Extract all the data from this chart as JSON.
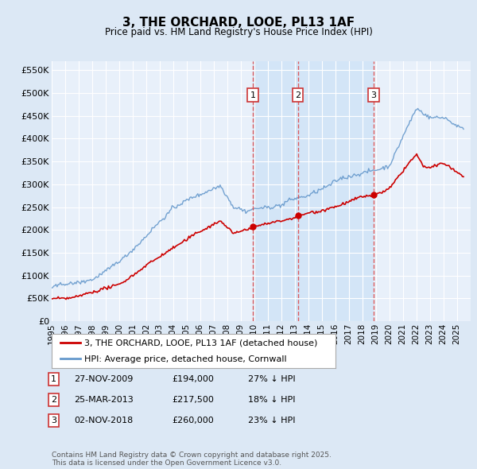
{
  "title": "3, THE ORCHARD, LOOE, PL13 1AF",
  "subtitle": "Price paid vs. HM Land Registry's House Price Index (HPI)",
  "ylabel_ticks": [
    "£0",
    "£50K",
    "£100K",
    "£150K",
    "£200K",
    "£250K",
    "£300K",
    "£350K",
    "£400K",
    "£450K",
    "£500K",
    "£550K"
  ],
  "ytick_values": [
    0,
    50000,
    100000,
    150000,
    200000,
    250000,
    300000,
    350000,
    400000,
    450000,
    500000,
    550000
  ],
  "ylim": [
    0,
    570000
  ],
  "background_color": "#dce8f5",
  "plot_bg": "#dce8f5",
  "chart_bg": "#e8f0fa",
  "legend_entries": [
    "3, THE ORCHARD, LOOE, PL13 1AF (detached house)",
    "HPI: Average price, detached house, Cornwall"
  ],
  "transactions": [
    {
      "num": 1,
      "date": "27-NOV-2009",
      "price": 194000,
      "price_str": "£194,000",
      "pct": "27%",
      "dir": "↓",
      "year": 2009.9
    },
    {
      "num": 2,
      "date": "25-MAR-2013",
      "price": 217500,
      "price_str": "£217,500",
      "pct": "18%",
      "dir": "↓",
      "year": 2013.23
    },
    {
      "num": 3,
      "date": "02-NOV-2018",
      "price": 260000,
      "price_str": "£260,000",
      "pct": "23%",
      "dir": "↓",
      "year": 2018.84
    }
  ],
  "red_line_color": "#cc0000",
  "blue_line_color": "#6699cc",
  "vline_color": "#dd4444",
  "highlight_color": "#d0e4f7",
  "footer": "Contains HM Land Registry data © Crown copyright and database right 2025.\nThis data is licensed under the Open Government Licence v3.0.",
  "xmin": 1995,
  "xmax": 2026
}
